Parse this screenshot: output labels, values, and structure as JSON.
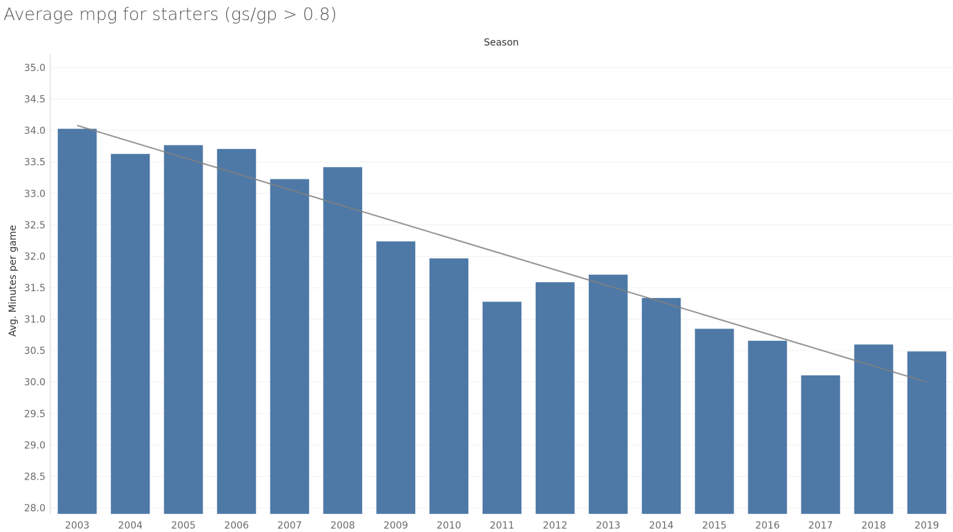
{
  "title": "Average mpg for starters (gs/gp > 0.8)",
  "colors": {
    "bar": "#4e79a7",
    "trend": "#7f7f7f",
    "grid": "#f0f0f0",
    "axis": "#d4d4d4"
  },
  "chart_data": {
    "type": "bar",
    "column_header": "Season",
    "ylabel": "Avg. Minutes per game",
    "xlabel": "",
    "ylim": [
      28.0,
      35.2
    ],
    "yticks": [
      "35.0",
      "34.5",
      "34.0",
      "33.5",
      "33.0",
      "32.5",
      "32.0",
      "31.5",
      "31.0",
      "30.5",
      "30.0",
      "29.5",
      "29.0",
      "28.5",
      "28.0"
    ],
    "categories": [
      "2003",
      "2004",
      "2005",
      "2006",
      "2007",
      "2008",
      "2009",
      "2010",
      "2011",
      "2012",
      "2013",
      "2014",
      "2015",
      "2016",
      "2017",
      "2018",
      "2019"
    ],
    "values": [
      34.03,
      33.63,
      33.77,
      33.71,
      33.23,
      33.42,
      32.24,
      31.97,
      31.28,
      31.59,
      31.71,
      31.34,
      30.85,
      30.66,
      30.11,
      30.6,
      30.49
    ],
    "trend_line": {
      "start": {
        "x": "2003",
        "y": 34.08
      },
      "end": {
        "x": "2019",
        "y": 30.0
      }
    },
    "grid": true,
    "legend": "none"
  }
}
